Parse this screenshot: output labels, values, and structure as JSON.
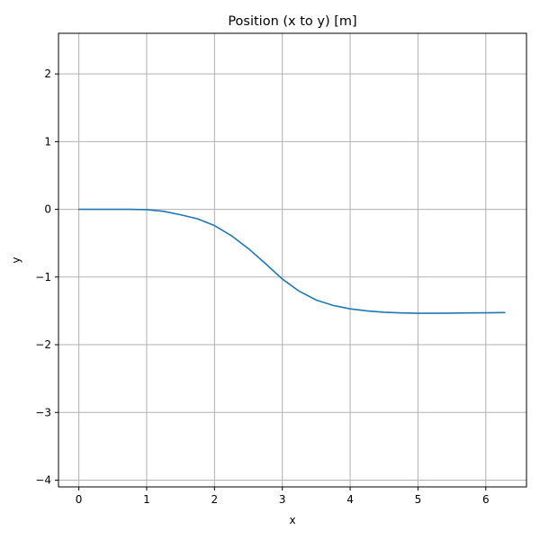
{
  "chart_data": {
    "type": "line",
    "title": "Position (x to y) [m]",
    "xlabel": "x",
    "ylabel": "y",
    "xlim": [
      -0.3,
      6.6
    ],
    "ylim": [
      -4.1,
      2.6
    ],
    "xticks": [
      0,
      1,
      2,
      3,
      4,
      5,
      6
    ],
    "yticks": [
      -4,
      -3,
      -2,
      -1,
      0,
      1,
      2
    ],
    "grid": true,
    "colors": {
      "series": "#1f77b4",
      "grid": "#b0b0b0",
      "axes": "#000000"
    },
    "series": [
      {
        "x": [
          0.0,
          0.25,
          0.5,
          0.75,
          1.0,
          1.25,
          1.5,
          1.75,
          2.0,
          2.25,
          2.5,
          2.75,
          3.0,
          3.25,
          3.5,
          3.75,
          4.0,
          4.25,
          4.5,
          4.75,
          5.0,
          5.25,
          5.5,
          5.75,
          6.0,
          6.28
        ],
        "y": [
          0.0,
          0.0,
          0.0,
          0.0,
          -0.005,
          -0.03,
          -0.08,
          -0.14,
          -0.24,
          -0.39,
          -0.58,
          -0.8,
          -1.03,
          -1.21,
          -1.34,
          -1.42,
          -1.47,
          -1.5,
          -1.52,
          -1.53,
          -1.535,
          -1.535,
          -1.533,
          -1.53,
          -1.528,
          -1.525
        ]
      }
    ]
  }
}
